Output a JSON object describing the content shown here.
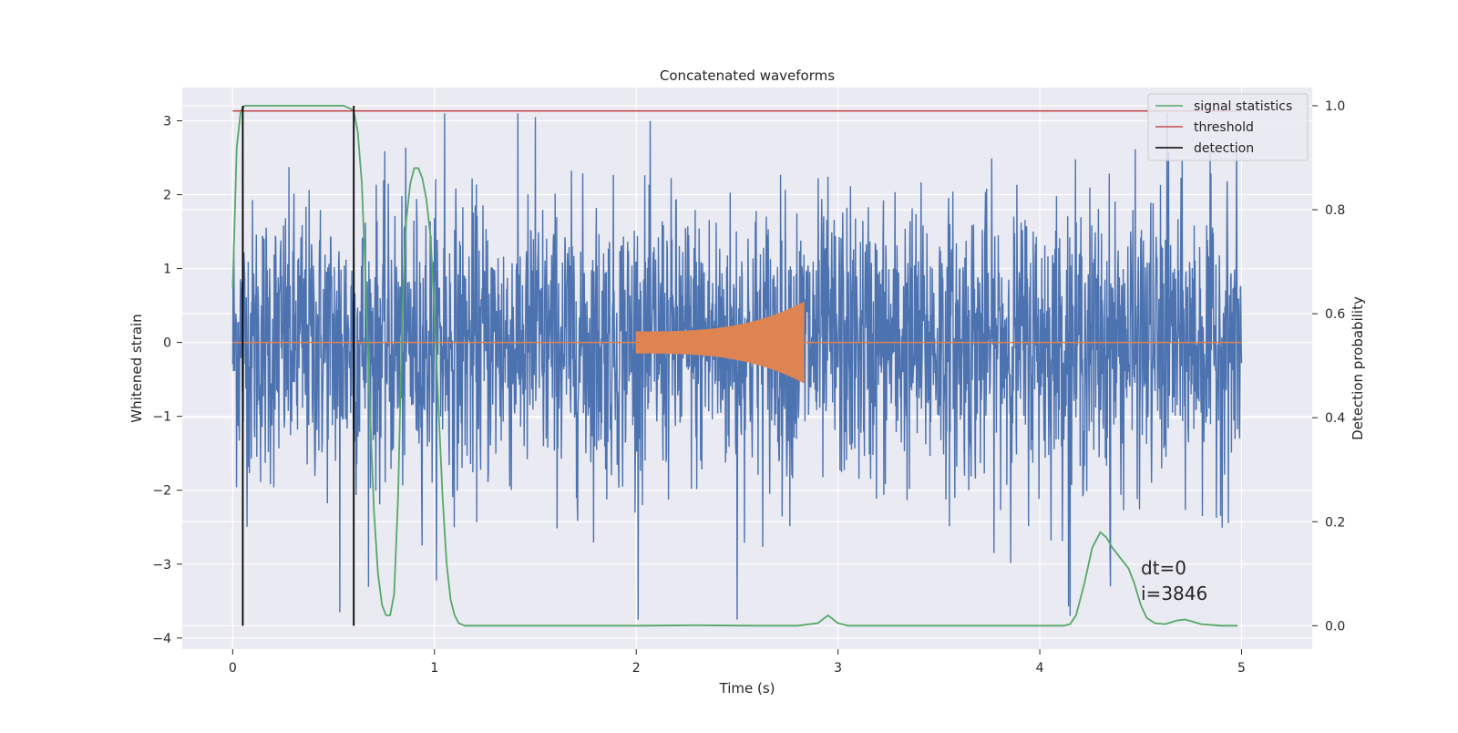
{
  "chart_data": {
    "type": "line",
    "title": "Concatenated waveforms",
    "xlabel": "Time (s)",
    "ylabel": "Whitened strain",
    "y2label": "Detection probability",
    "xlim": [
      -0.25,
      5.35
    ],
    "ylim": [
      -4.15,
      3.45
    ],
    "y2lim": [
      -0.045,
      1.035
    ],
    "x_ticks": [
      0,
      1,
      2,
      3,
      4,
      5
    ],
    "y_ticks": [
      -4,
      -3,
      -2,
      -1,
      0,
      1,
      2,
      3
    ],
    "y2_ticks": [
      0.0,
      0.2,
      0.4,
      0.6,
      0.8,
      1.0
    ],
    "tick_labels": {
      "x": [
        "0",
        "1",
        "2",
        "3",
        "4",
        "5"
      ],
      "y": [
        "−4",
        "−3",
        "−2",
        "−1",
        "0",
        "1",
        "2",
        "3"
      ],
      "y2": [
        "0.0",
        "0.2",
        "0.4",
        "0.6",
        "0.8",
        "1.0"
      ]
    },
    "grid": true,
    "legend_position": "top-right",
    "series": [
      {
        "kind": "noise",
        "axis": "y",
        "color": "#4c72b0",
        "x_range": [
          0,
          5
        ],
        "typical_amplitude": 1.0,
        "max_value": 3.1,
        "min_value": -3.75,
        "marked_peaks": [
          [
            0.05,
            2.5
          ],
          [
            0.6,
            1.8
          ],
          [
            1.05,
            3.1
          ],
          [
            1.5,
            3.05
          ],
          [
            4.63,
            3.1
          ],
          [
            0.53,
            -3.65
          ],
          [
            2.5,
            -3.75
          ],
          [
            4.15,
            -3.7
          ],
          [
            4.35,
            -3.3
          ]
        ]
      },
      {
        "kind": "chirp",
        "axis": "y",
        "color": "#dd8452",
        "x_range": [
          2.0,
          2.83
        ],
        "start_amplitude": 0.15,
        "end_amplitude": 0.55,
        "baseline": 0
      },
      {
        "name": "signal statistics",
        "axis": "y2",
        "color": "#55a868",
        "x": [
          0.0,
          0.02,
          0.04,
          0.06,
          0.08,
          0.1,
          0.2,
          0.3,
          0.4,
          0.5,
          0.55,
          0.58,
          0.6,
          0.62,
          0.64,
          0.66,
          0.68,
          0.7,
          0.72,
          0.74,
          0.76,
          0.78,
          0.8,
          0.82,
          0.84,
          0.86,
          0.88,
          0.9,
          0.92,
          0.94,
          0.96,
          0.98,
          1.0,
          1.02,
          1.04,
          1.06,
          1.08,
          1.1,
          1.12,
          1.15,
          1.2,
          1.3,
          1.5,
          2.0,
          2.3,
          2.6,
          2.8,
          2.9,
          2.95,
          3.0,
          3.05,
          3.2,
          3.5,
          4.0,
          4.12,
          4.15,
          4.18,
          4.22,
          4.26,
          4.3,
          4.33,
          4.36,
          4.4,
          4.44,
          4.47,
          4.5,
          4.53,
          4.57,
          4.62,
          4.68,
          4.72,
          4.8,
          4.9,
          4.98
        ],
        "y": [
          0.65,
          0.92,
          0.99,
          1.0,
          1.0,
          1.0,
          1.0,
          1.0,
          1.0,
          1.0,
          1.0,
          0.995,
          0.99,
          0.95,
          0.85,
          0.65,
          0.42,
          0.22,
          0.1,
          0.04,
          0.02,
          0.02,
          0.06,
          0.25,
          0.6,
          0.78,
          0.85,
          0.88,
          0.88,
          0.86,
          0.82,
          0.75,
          0.6,
          0.42,
          0.25,
          0.12,
          0.05,
          0.02,
          0.005,
          0.0,
          0.0,
          0.0,
          0.0,
          0.0,
          0.001,
          0.0,
          0.0,
          0.005,
          0.02,
          0.005,
          0.0,
          0.0,
          0.0,
          0.0,
          0.0,
          0.003,
          0.02,
          0.08,
          0.15,
          0.18,
          0.17,
          0.15,
          0.13,
          0.11,
          0.08,
          0.04,
          0.015,
          0.005,
          0.003,
          0.01,
          0.012,
          0.003,
          0.0,
          0.0
        ]
      },
      {
        "name": "threshold",
        "axis": "y2",
        "color": "#c44e52",
        "x": [
          0,
          5
        ],
        "y": [
          0.99,
          0.99
        ]
      },
      {
        "name": "detection",
        "axis": "y2",
        "color": "#000000",
        "vertical_lines_x": [
          0.05,
          0.6
        ],
        "y_range": [
          0.0,
          1.0
        ]
      }
    ],
    "annotations": [
      "dt=0",
      "i=3846"
    ]
  }
}
